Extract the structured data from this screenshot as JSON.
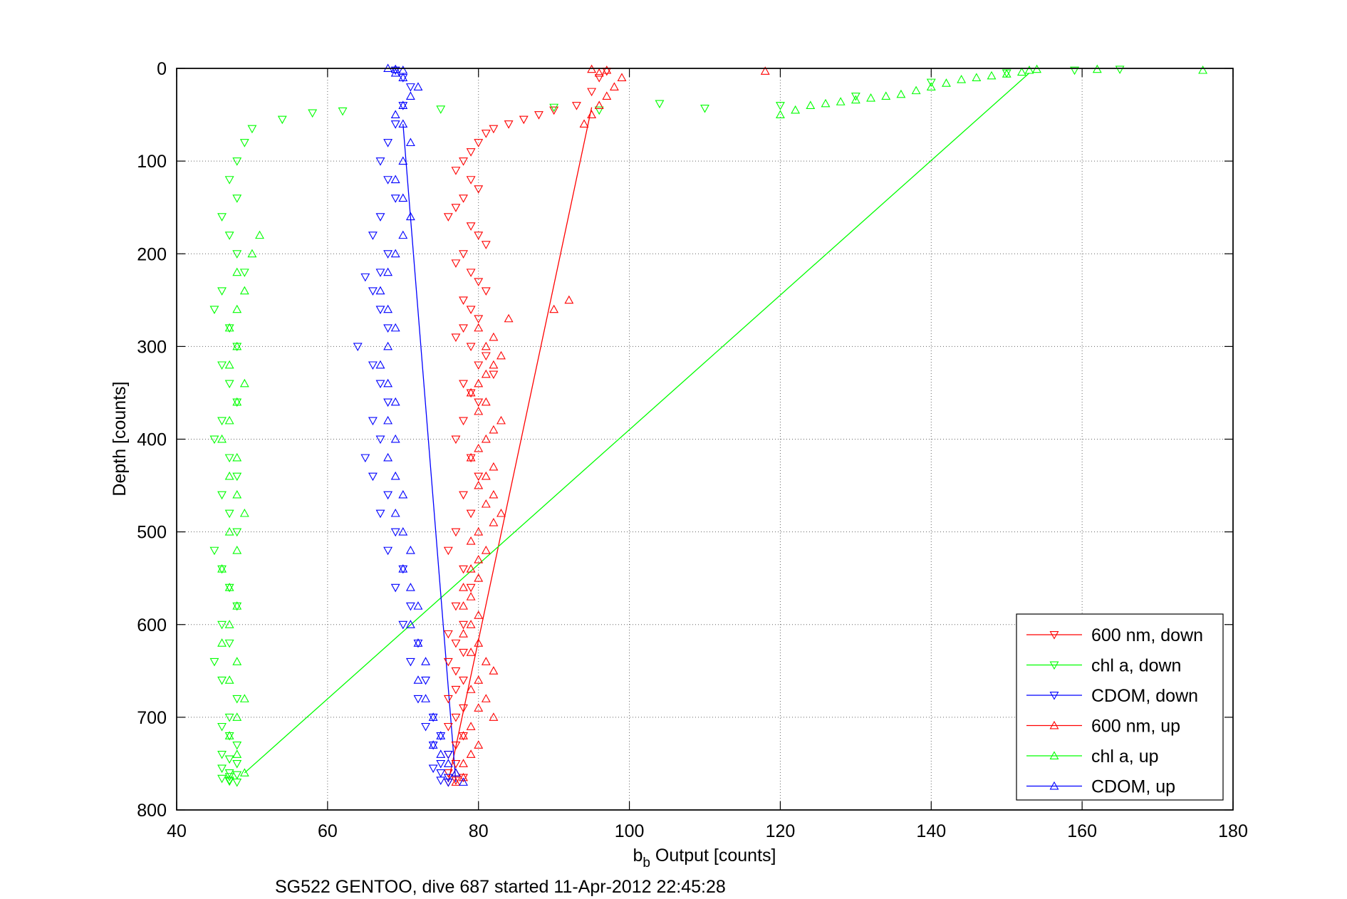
{
  "chart_data": {
    "type": "scatter",
    "title": "",
    "xlabel": "b",
    "xlabel_sub": "b",
    "xlabel_rest": " Output [counts]",
    "ylabel": "Depth [counts]",
    "caption": "SG522 GENTOO, dive 687 started 11-Apr-2012 22:45:28",
    "xlim": [
      40,
      180
    ],
    "ylim": [
      0,
      800
    ],
    "y_reversed": true,
    "grid": true,
    "legend_position": "bottom-right",
    "x_ticks": [
      40,
      60,
      80,
      100,
      120,
      140,
      160,
      180
    ],
    "y_ticks": [
      0,
      100,
      200,
      300,
      400,
      500,
      600,
      700,
      800
    ],
    "series": [
      {
        "name": "600 nm, down",
        "color": "#ff0000",
        "marker": "triangle-down",
        "x": [
          97,
          96,
          95,
          93,
          90,
          88,
          86,
          84,
          82,
          81,
          80,
          79,
          78,
          77,
          79,
          80,
          78,
          77,
          76,
          79,
          80,
          81,
          78,
          77,
          79,
          80,
          81,
          78,
          79,
          80,
          78,
          77,
          79,
          81,
          80,
          82,
          78,
          79,
          80,
          78,
          77,
          79,
          80,
          78,
          79,
          77,
          76,
          78,
          79,
          77,
          78,
          76,
          77,
          78,
          76,
          77,
          78,
          77,
          76,
          78,
          77,
          76,
          78,
          77,
          76,
          77,
          76,
          78,
          77,
          76
        ],
        "y": [
          3,
          10,
          25,
          40,
          45,
          50,
          55,
          60,
          65,
          70,
          80,
          90,
          100,
          110,
          120,
          130,
          140,
          150,
          160,
          170,
          180,
          190,
          200,
          210,
          220,
          230,
          240,
          250,
          260,
          270,
          280,
          290,
          300,
          310,
          320,
          330,
          340,
          350,
          360,
          380,
          400,
          420,
          440,
          460,
          480,
          500,
          520,
          540,
          560,
          580,
          600,
          610,
          620,
          630,
          640,
          650,
          660,
          670,
          680,
          690,
          700,
          710,
          720,
          730,
          740,
          750,
          760,
          765,
          768,
          770
        ]
      },
      {
        "name": "chl a, down",
        "color": "#00ff00",
        "marker": "triangle-down",
        "x": [
          159,
          165,
          150,
          140,
          130,
          120,
          110,
          104,
          96,
          90,
          75,
          62,
          58,
          54,
          50,
          49,
          48,
          47,
          48,
          46,
          47,
          48,
          49,
          46,
          45,
          47,
          48,
          46,
          47,
          48,
          46,
          45,
          47,
          48,
          46,
          47,
          48,
          45,
          46,
          47,
          48,
          46,
          47,
          45,
          46,
          48,
          47,
          46,
          47,
          48,
          46,
          47,
          48,
          46,
          47,
          48,
          47,
          46,
          47,
          48,
          47
        ],
        "y": [
          2,
          1,
          5,
          15,
          30,
          40,
          43,
          38,
          45,
          42,
          44,
          46,
          48,
          55,
          65,
          80,
          100,
          120,
          140,
          160,
          180,
          200,
          220,
          240,
          260,
          280,
          300,
          320,
          340,
          360,
          380,
          400,
          420,
          440,
          460,
          480,
          500,
          520,
          540,
          560,
          580,
          600,
          620,
          640,
          660,
          680,
          700,
          710,
          720,
          730,
          740,
          745,
          750,
          755,
          760,
          762,
          764,
          766,
          768,
          770,
          769
        ]
      },
      {
        "name": "CDOM, down",
        "color": "#0000ff",
        "marker": "triangle-down",
        "x": [
          69,
          70,
          71,
          70,
          69,
          68,
          67,
          68,
          69,
          67,
          66,
          68,
          67,
          65,
          66,
          67,
          68,
          64,
          66,
          67,
          68,
          66,
          67,
          65,
          66,
          68,
          67,
          69,
          68,
          70,
          69,
          71,
          70,
          72,
          71,
          73,
          72,
          74,
          73,
          75,
          74,
          76,
          75,
          74,
          75,
          76,
          75,
          76
        ],
        "y": [
          2,
          10,
          20,
          40,
          60,
          80,
          100,
          120,
          140,
          160,
          180,
          200,
          220,
          225,
          240,
          260,
          280,
          300,
          320,
          340,
          360,
          380,
          400,
          420,
          440,
          460,
          480,
          500,
          520,
          540,
          560,
          580,
          600,
          620,
          640,
          660,
          680,
          700,
          710,
          720,
          730,
          740,
          750,
          755,
          760,
          765,
          768,
          770
        ]
      },
      {
        "name": "600 nm, up",
        "color": "#ff0000",
        "marker": "triangle-up",
        "x": [
          77,
          78,
          77,
          78,
          79,
          80,
          78,
          79,
          82,
          80,
          81,
          79,
          80,
          82,
          81,
          79,
          80,
          78,
          79,
          80,
          78,
          79,
          78,
          80,
          79,
          80,
          81,
          79,
          80,
          82,
          83,
          81,
          82,
          80,
          81,
          82,
          79,
          80,
          81,
          82,
          83,
          80,
          81,
          79,
          80,
          81,
          82,
          83,
          81,
          82,
          80,
          84,
          90,
          92,
          94,
          95,
          96,
          97,
          98,
          99,
          96,
          97,
          95,
          118
        ],
        "y": [
          770,
          765,
          760,
          750,
          740,
          730,
          720,
          710,
          700,
          690,
          680,
          670,
          660,
          650,
          640,
          630,
          620,
          610,
          600,
          590,
          580,
          570,
          560,
          550,
          540,
          530,
          520,
          510,
          500,
          490,
          480,
          470,
          460,
          450,
          440,
          430,
          420,
          410,
          400,
          390,
          380,
          370,
          360,
          350,
          340,
          330,
          320,
          310,
          300,
          290,
          280,
          270,
          260,
          250,
          60,
          50,
          40,
          30,
          20,
          10,
          5,
          2,
          1,
          3
        ]
      },
      {
        "name": "chl a, up",
        "color": "#00ff00",
        "marker": "triangle-up",
        "x": [
          49,
          48,
          47,
          48,
          49,
          47,
          48,
          46,
          47,
          48,
          47,
          46,
          48,
          47,
          49,
          48,
          47,
          48,
          46,
          47,
          48,
          49,
          47,
          48,
          47,
          48,
          49,
          48,
          50,
          51,
          120,
          122,
          124,
          126,
          128,
          130,
          132,
          134,
          136,
          138,
          140,
          142,
          144,
          146,
          148,
          150,
          152,
          153,
          154,
          162,
          176
        ],
        "y": [
          760,
          740,
          720,
          700,
          680,
          660,
          640,
          620,
          600,
          580,
          560,
          540,
          520,
          500,
          480,
          460,
          440,
          420,
          400,
          380,
          360,
          340,
          320,
          300,
          280,
          260,
          240,
          220,
          200,
          180,
          50,
          45,
          40,
          38,
          36,
          34,
          32,
          30,
          28,
          24,
          20,
          16,
          12,
          10,
          8,
          6,
          4,
          2,
          1,
          1,
          2
        ]
      },
      {
        "name": "CDOM, up",
        "color": "#0000ff",
        "marker": "triangle-up",
        "x": [
          78,
          77,
          76,
          75,
          74,
          75,
          74,
          73,
          72,
          73,
          72,
          71,
          72,
          71,
          70,
          71,
          70,
          69,
          70,
          69,
          68,
          69,
          68,
          69,
          68,
          67,
          68,
          69,
          68,
          67,
          68,
          69,
          70,
          71,
          70,
          69,
          70,
          71,
          70,
          69,
          70,
          71,
          72,
          70,
          69,
          70,
          69,
          68
        ],
        "y": [
          770,
          760,
          750,
          740,
          730,
          720,
          700,
          680,
          660,
          640,
          620,
          600,
          580,
          560,
          540,
          520,
          500,
          480,
          460,
          440,
          420,
          400,
          380,
          360,
          340,
          320,
          300,
          280,
          260,
          240,
          220,
          200,
          180,
          160,
          140,
          120,
          100,
          80,
          60,
          50,
          40,
          30,
          20,
          10,
          5,
          2,
          1,
          0
        ]
      }
    ],
    "lines": [
      {
        "series": "600 nm, up",
        "color": "#ff0000",
        "x": [
          76,
          95
        ],
        "y": [
          770,
          42
        ]
      },
      {
        "series": "chl a, up",
        "color": "#00ff00",
        "x": [
          49,
          153
        ],
        "y": [
          760,
          5
        ]
      },
      {
        "series": "CDOM, up",
        "color": "#0000ff",
        "x": [
          70,
          77
        ],
        "y": [
          60,
          770
        ]
      }
    ]
  }
}
